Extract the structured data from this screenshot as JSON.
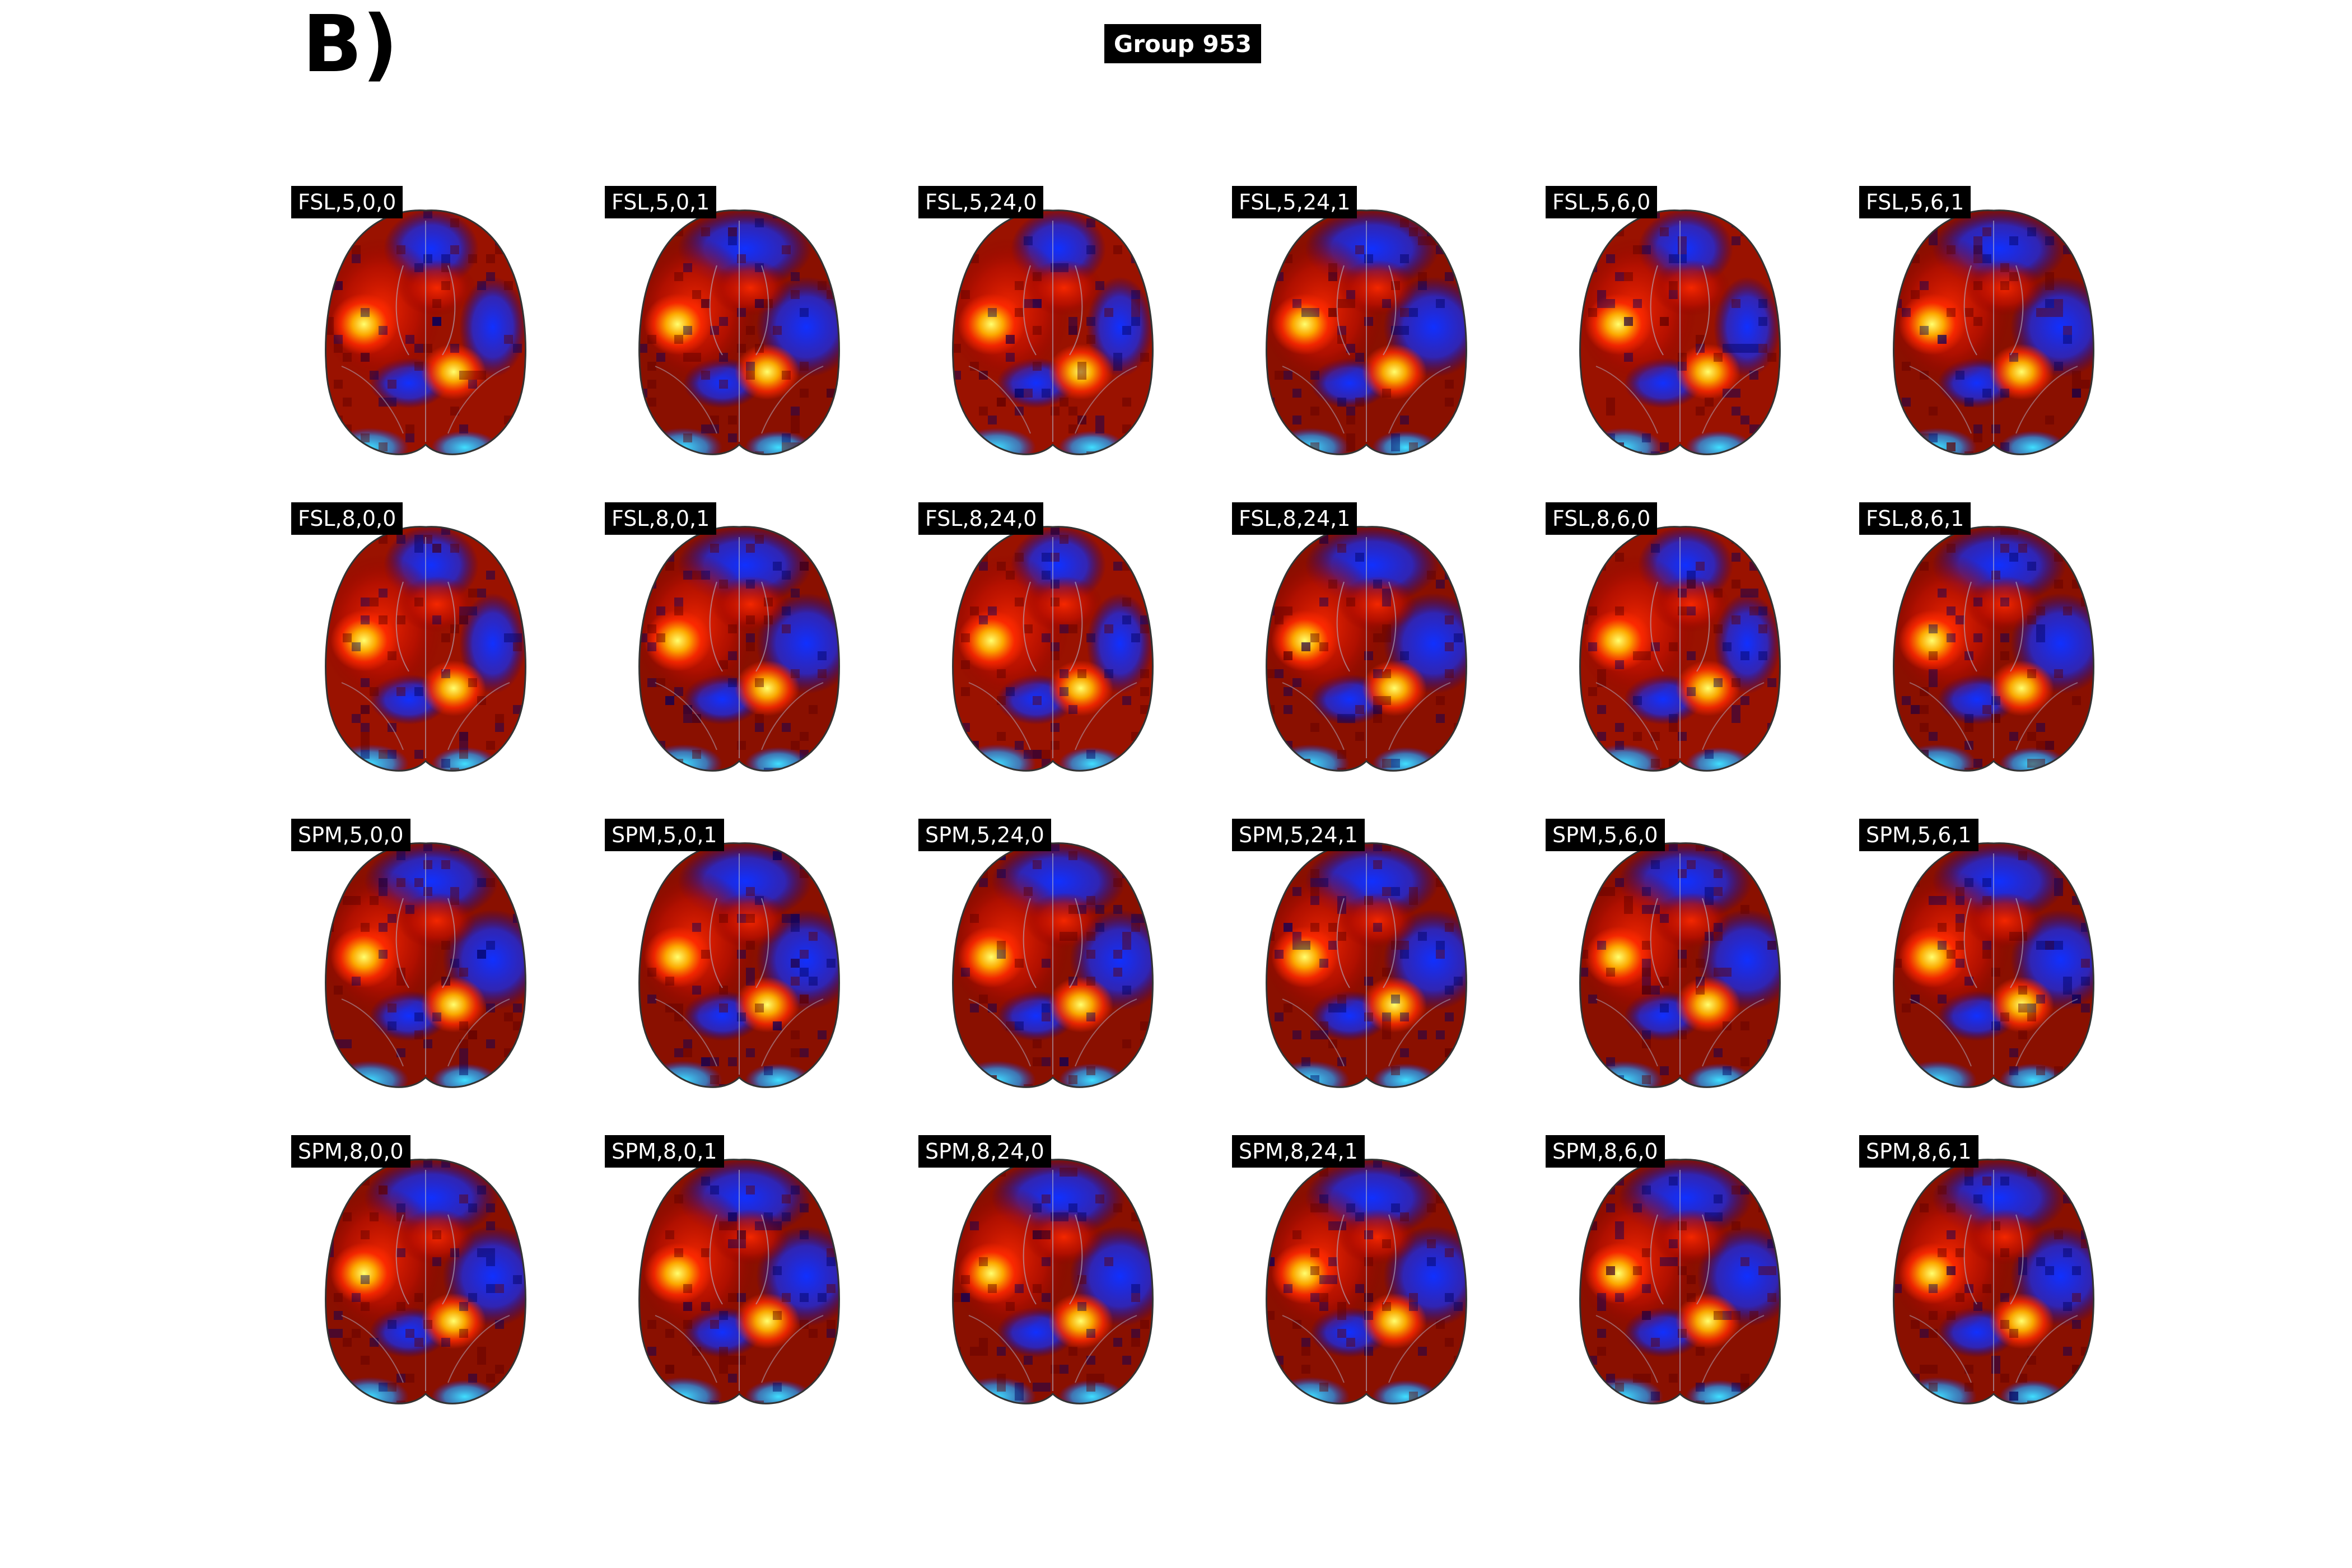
{
  "panel_letter": "B)",
  "group_title": "Group 953",
  "rows": [
    [
      "FSL,5,0,0",
      "FSL,5,0,1",
      "FSL,5,24,0",
      "FSL,5,24,1",
      "FSL,5,6,0",
      "FSL,5,6,1"
    ],
    [
      "FSL,8,0,0",
      "FSL,8,0,1",
      "FSL,8,24,0",
      "FSL,8,24,1",
      "FSL,8,6,0",
      "FSL,8,6,1"
    ],
    [
      "SPM,5,0,0",
      "SPM,5,0,1",
      "SPM,5,24,0",
      "SPM,5,24,1",
      "SPM,5,6,0",
      "SPM,5,6,1"
    ],
    [
      "SPM,8,0,0",
      "SPM,8,0,1",
      "SPM,8,24,0",
      "SPM,8,24,1",
      "SPM,8,6,0",
      "SPM,8,6,1"
    ]
  ],
  "map": {
    "type": "axial brain slice statistical map",
    "colormap": "cold-hot",
    "colors": {
      "hot_low": "#8b0000",
      "hot_mid": "#ff2a00",
      "hot_high": "#ffff70",
      "cold_low": "#00008b",
      "cold_mid": "#1030ff",
      "cold_high": "#40e0ff"
    }
  }
}
